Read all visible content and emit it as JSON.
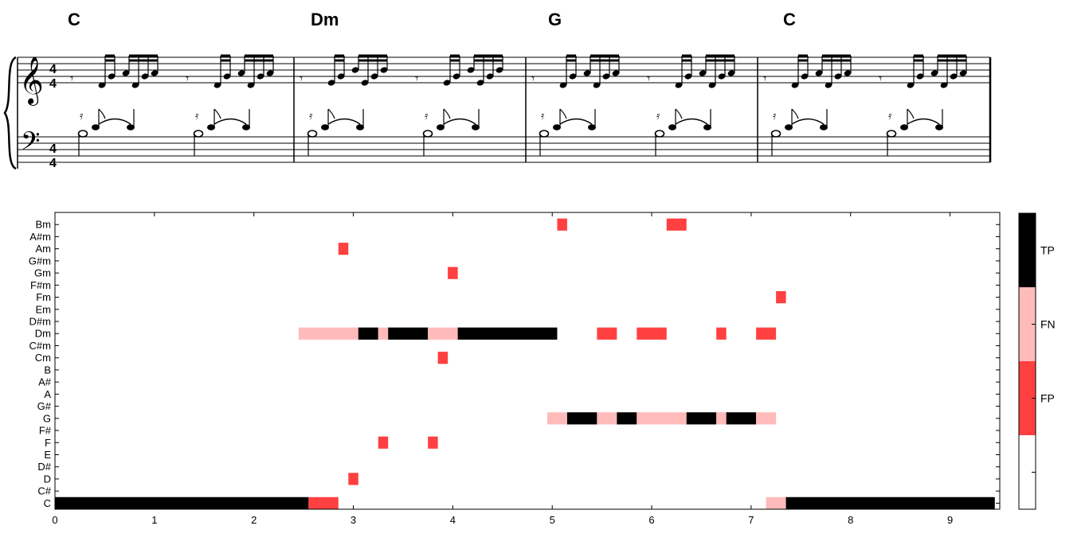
{
  "score": {
    "chords": [
      "C",
      "Dm",
      "G",
      "C"
    ],
    "time_signature": {
      "numerator": "4",
      "denominator": "4"
    }
  },
  "colors": {
    "TP": "#000000",
    "FN": "#ffbaba",
    "FP": "#ff4040",
    "TN": "#ffffff"
  },
  "chart_data": {
    "type": "heatmap",
    "xlim": [
      0,
      9.5
    ],
    "x_ticks": [
      0,
      1,
      2,
      3,
      4,
      5,
      6,
      7,
      8,
      9
    ],
    "y_categories": [
      "C",
      "C#",
      "D",
      "D#",
      "E",
      "F",
      "F#",
      "G",
      "G#",
      "A",
      "A#",
      "B",
      "Cm",
      "C#m",
      "Dm",
      "D#m",
      "Em",
      "Fm",
      "F#m",
      "Gm",
      "G#m",
      "Am",
      "A#m",
      "Bm"
    ],
    "legend": [
      "TP",
      "FN",
      "FP"
    ],
    "segments": [
      {
        "row": "C",
        "start": 0.0,
        "end": 2.55,
        "class": "TP"
      },
      {
        "row": "C",
        "start": 2.55,
        "end": 2.85,
        "class": "FP"
      },
      {
        "row": "C",
        "start": 7.15,
        "end": 7.35,
        "class": "FN"
      },
      {
        "row": "C",
        "start": 7.35,
        "end": 9.45,
        "class": "TP"
      },
      {
        "row": "D",
        "start": 2.95,
        "end": 3.05,
        "class": "FP"
      },
      {
        "row": "F",
        "start": 3.25,
        "end": 3.35,
        "class": "FP"
      },
      {
        "row": "F",
        "start": 3.75,
        "end": 3.85,
        "class": "FP"
      },
      {
        "row": "G",
        "start": 4.95,
        "end": 5.15,
        "class": "FN"
      },
      {
        "row": "G",
        "start": 5.15,
        "end": 5.45,
        "class": "TP"
      },
      {
        "row": "G",
        "start": 5.45,
        "end": 5.65,
        "class": "FN"
      },
      {
        "row": "G",
        "start": 5.65,
        "end": 5.85,
        "class": "TP"
      },
      {
        "row": "G",
        "start": 5.85,
        "end": 6.35,
        "class": "FN"
      },
      {
        "row": "G",
        "start": 6.35,
        "end": 6.65,
        "class": "TP"
      },
      {
        "row": "G",
        "start": 6.65,
        "end": 6.75,
        "class": "FN"
      },
      {
        "row": "G",
        "start": 6.75,
        "end": 7.05,
        "class": "TP"
      },
      {
        "row": "G",
        "start": 7.05,
        "end": 7.25,
        "class": "FN"
      },
      {
        "row": "Cm",
        "start": 3.85,
        "end": 3.95,
        "class": "FP"
      },
      {
        "row": "Dm",
        "start": 2.45,
        "end": 3.05,
        "class": "FN"
      },
      {
        "row": "Dm",
        "start": 3.05,
        "end": 3.25,
        "class": "TP"
      },
      {
        "row": "Dm",
        "start": 3.25,
        "end": 3.35,
        "class": "FN"
      },
      {
        "row": "Dm",
        "start": 3.35,
        "end": 3.75,
        "class": "TP"
      },
      {
        "row": "Dm",
        "start": 3.75,
        "end": 4.05,
        "class": "FN"
      },
      {
        "row": "Dm",
        "start": 4.05,
        "end": 5.05,
        "class": "TP"
      },
      {
        "row": "Dm",
        "start": 5.45,
        "end": 5.65,
        "class": "FP"
      },
      {
        "row": "Dm",
        "start": 5.85,
        "end": 6.15,
        "class": "FP"
      },
      {
        "row": "Dm",
        "start": 6.65,
        "end": 6.75,
        "class": "FP"
      },
      {
        "row": "Dm",
        "start": 7.05,
        "end": 7.25,
        "class": "FP"
      },
      {
        "row": "Fm",
        "start": 7.25,
        "end": 7.35,
        "class": "FP"
      },
      {
        "row": "Gm",
        "start": 3.95,
        "end": 4.05,
        "class": "FP"
      },
      {
        "row": "Am",
        "start": 2.85,
        "end": 2.95,
        "class": "FP"
      },
      {
        "row": "Bm",
        "start": 5.05,
        "end": 5.15,
        "class": "FP"
      },
      {
        "row": "Bm",
        "start": 6.15,
        "end": 6.35,
        "class": "FP"
      }
    ]
  }
}
